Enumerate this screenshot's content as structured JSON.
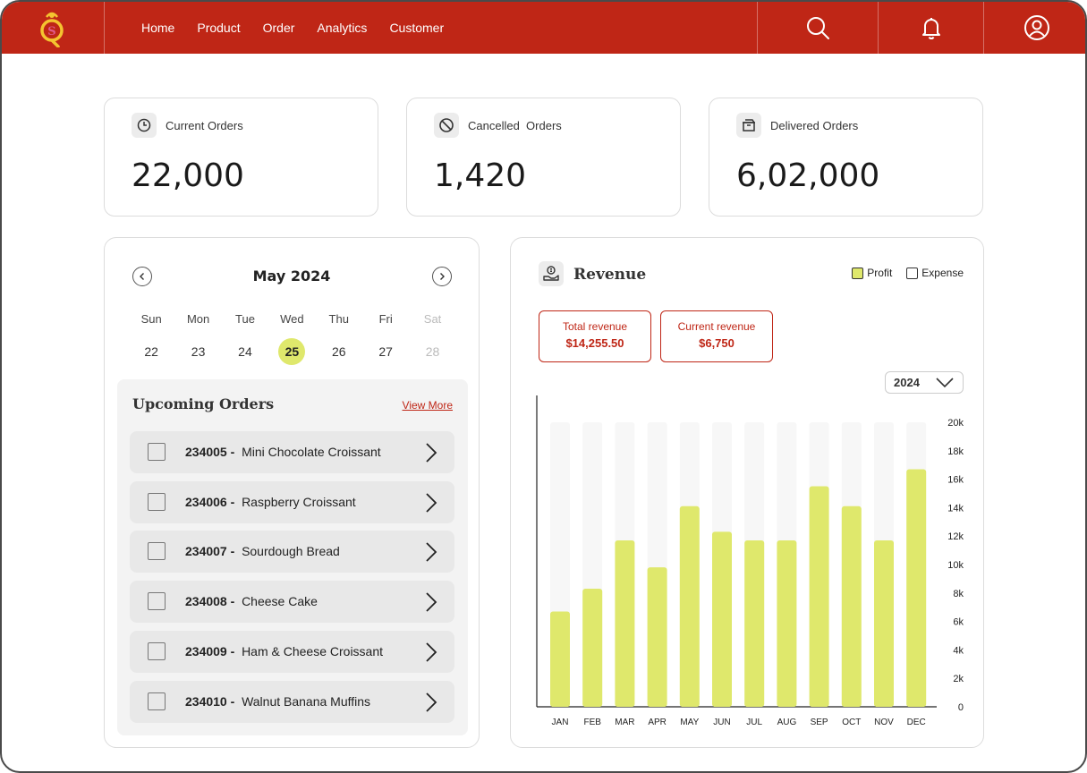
{
  "nav": {
    "links": [
      "Home",
      "Product",
      "Order",
      "Analytics",
      "Customer"
    ],
    "icons": [
      "search-icon",
      "bell-icon",
      "user-icon"
    ],
    "brand_color": "#bf2616"
  },
  "stats": [
    {
      "label": "Current Orders",
      "value": "22,000",
      "icon": "clock-icon"
    },
    {
      "label": "Cancelled  Orders",
      "value": "1,420",
      "icon": "ban-icon"
    },
    {
      "label": "Delivered Orders",
      "value": "6,02,000",
      "icon": "box-icon"
    }
  ],
  "calendar": {
    "title": "May 2024",
    "days": [
      "Sun",
      "Mon",
      "Tue",
      "Wed",
      "Thu",
      "Fri",
      "Sat"
    ],
    "dates": [
      "22",
      "23",
      "24",
      "25",
      "26",
      "27",
      "28"
    ],
    "selected": "25",
    "highlight_color": "#dfe86c"
  },
  "upcoming": {
    "title": "Upcoming Orders",
    "view_more": "View More",
    "orders": [
      {
        "id": "234005 -",
        "name": "Mini Chocolate Croissant"
      },
      {
        "id": "234006 -",
        "name": "Raspberry Croissant"
      },
      {
        "id": "234007 -",
        "name": "Sourdough Bread"
      },
      {
        "id": "234008 -",
        "name": "Cheese Cake"
      },
      {
        "id": "234009 -",
        "name": "Ham & Cheese Croissant"
      },
      {
        "id": "234010 -",
        "name": "Walnut Banana Muffins"
      }
    ]
  },
  "revenue": {
    "title": "Revenue",
    "legend": {
      "profit": "Profit",
      "expense": "Expense"
    },
    "total_label": "Total revenue",
    "total_value": "$14,255.50",
    "current_label": "Current revenue",
    "current_value": "$6,750",
    "year": "2024"
  },
  "chart_data": {
    "type": "bar",
    "categories": [
      "JAN",
      "FEB",
      "MAR",
      "APR",
      "MAY",
      "JUN",
      "JUL",
      "AUG",
      "SEP",
      "OCT",
      "NOV",
      "DEC"
    ],
    "series": [
      {
        "name": "Profit",
        "values": [
          6700,
          8300,
          11700,
          9800,
          14100,
          12300,
          11700,
          11700,
          15500,
          14100,
          11700,
          16700
        ]
      },
      {
        "name": "Expense",
        "values": [
          20000,
          20000,
          20000,
          20000,
          20000,
          20000,
          20000,
          20000,
          20000,
          20000,
          20000,
          20000
        ]
      }
    ],
    "yticks": [
      "0",
      "2k",
      "4k",
      "6k",
      "8k",
      "10k",
      "12k",
      "14k",
      "16k",
      "18k",
      "20k"
    ],
    "ylim": [
      0,
      20000
    ],
    "colors": {
      "profit": "#dfe86c",
      "expense": "#f7f7f7"
    }
  }
}
